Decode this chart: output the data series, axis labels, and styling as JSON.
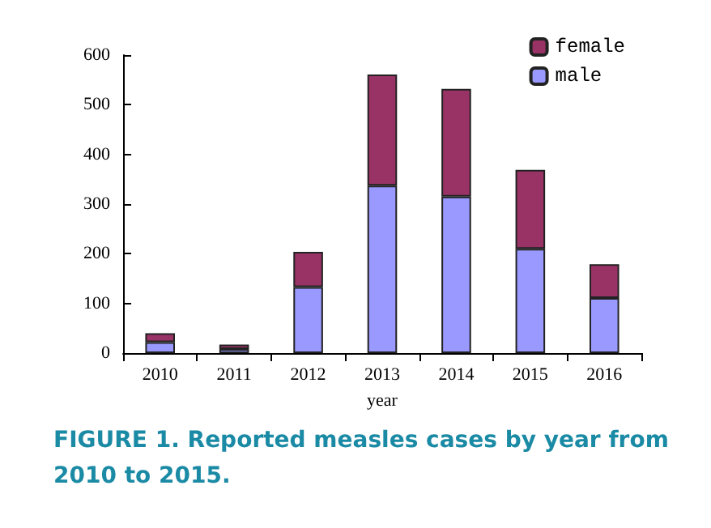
{
  "chart_data": {
    "type": "bar",
    "stacked": true,
    "title": "FIGURE 1. Reported measles cases by year from 2010 to 2015.",
    "xlabel": "year",
    "categories": [
      "2010",
      "2011",
      "2012",
      "2013",
      "2014",
      "2015",
      "2016"
    ],
    "series": [
      {
        "name": "male",
        "color": "#9999ff",
        "values": [
          22,
          8,
          133,
          337,
          315,
          210,
          111
        ]
      },
      {
        "name": "female",
        "color": "#993366",
        "values": [
          18,
          9,
          71,
          224,
          217,
          159,
          68
        ]
      }
    ],
    "ylim": [
      0,
      600
    ],
    "yticks": [
      0,
      100,
      200,
      300,
      400,
      500,
      600
    ],
    "legend": "top right"
  }
}
